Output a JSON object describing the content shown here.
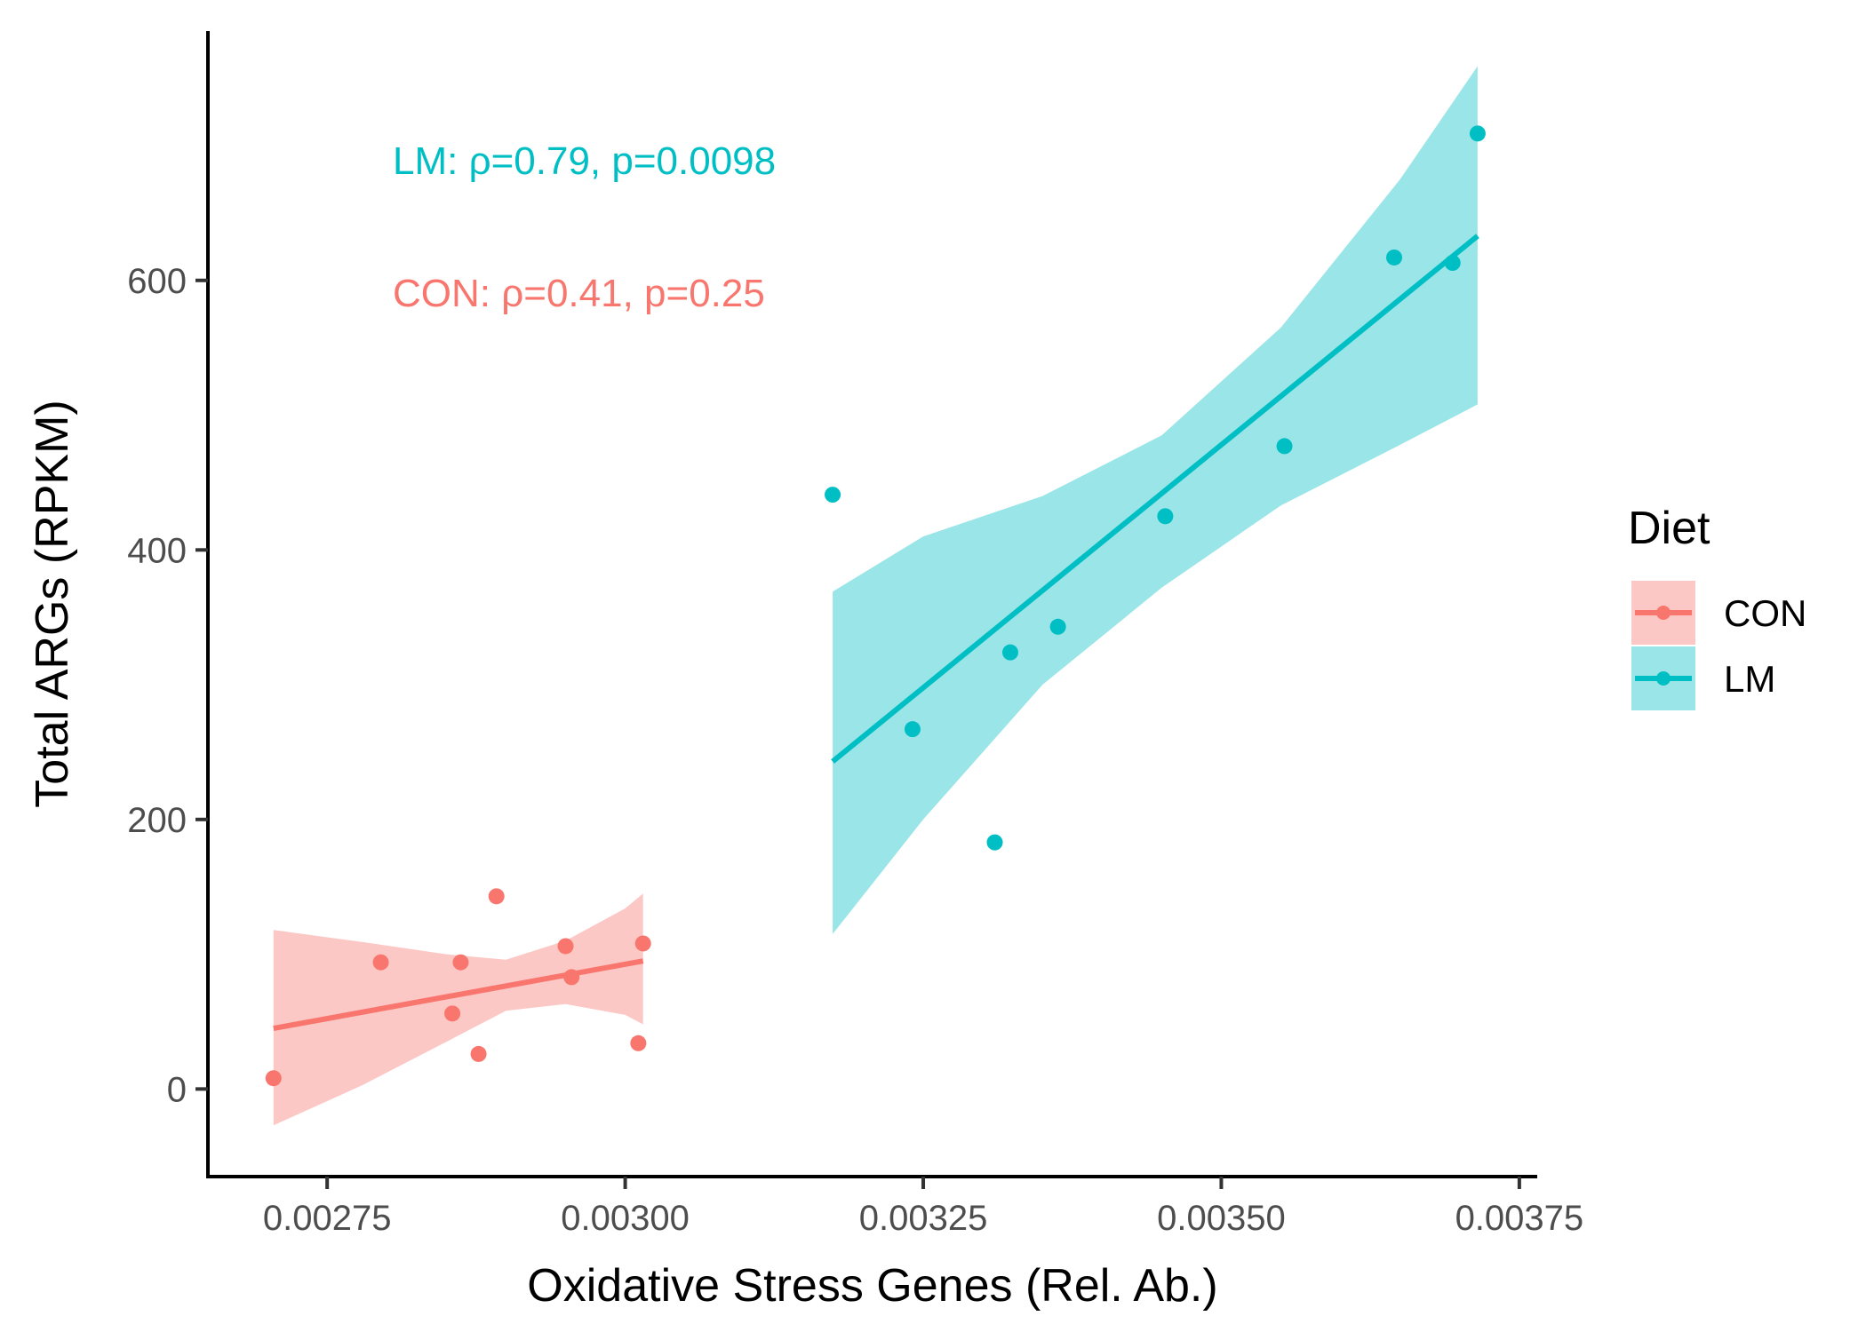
{
  "chart_data": {
    "type": "scatter",
    "xlabel": "Oxidative Stress Genes (Rel. Ab.)",
    "ylabel": "Total ARGs (RPKM)",
    "xlim": [
      0.00265,
      0.003765
    ],
    "ylim": [
      -65,
      785
    ],
    "x_ticks": [
      0.00275,
      0.003,
      0.00325,
      0.0035,
      0.00375
    ],
    "x_tick_labels": [
      "0.00275",
      "0.00300",
      "0.00325",
      "0.00350",
      "0.00375"
    ],
    "y_ticks": [
      0,
      200,
      400,
      600
    ],
    "y_tick_labels": [
      "0",
      "200",
      "400",
      "600"
    ],
    "grid": false,
    "legend": {
      "title": "Diet",
      "position": "right"
    },
    "series": [
      {
        "name": "CON",
        "color": "#F8766D",
        "points": [
          {
            "x": 0.002705,
            "y": 8
          },
          {
            "x": 0.002795,
            "y": 94
          },
          {
            "x": 0.002855,
            "y": 56
          },
          {
            "x": 0.002862,
            "y": 94
          },
          {
            "x": 0.002877,
            "y": 26
          },
          {
            "x": 0.002892,
            "y": 143
          },
          {
            "x": 0.00295,
            "y": 106
          },
          {
            "x": 0.002955,
            "y": 83
          },
          {
            "x": 0.003011,
            "y": 34
          },
          {
            "x": 0.003015,
            "y": 108
          }
        ],
        "fit": {
          "x": [
            0.002705,
            0.003015
          ],
          "y": [
            45,
            95
          ]
        },
        "band": {
          "x": [
            0.002705,
            0.00278,
            0.00285,
            0.0029,
            0.00295,
            0.003,
            0.003015
          ],
          "lower": [
            -27,
            3,
            35,
            58,
            63,
            55,
            48
          ],
          "upper": [
            118,
            109,
            100,
            96,
            110,
            134,
            145
          ]
        },
        "annotation": "CON: ρ=0.41, p=0.25"
      },
      {
        "name": "LM",
        "color": "#00BFC4",
        "points": [
          {
            "x": 0.003174,
            "y": 441
          },
          {
            "x": 0.003241,
            "y": 267
          },
          {
            "x": 0.00331,
            "y": 183
          },
          {
            "x": 0.003323,
            "y": 324
          },
          {
            "x": 0.003363,
            "y": 343
          },
          {
            "x": 0.003453,
            "y": 425
          },
          {
            "x": 0.003553,
            "y": 477
          },
          {
            "x": 0.003645,
            "y": 617
          },
          {
            "x": 0.003694,
            "y": 613
          },
          {
            "x": 0.003715,
            "y": 709
          }
        ],
        "fit": {
          "x": [
            0.003174,
            0.003715
          ],
          "y": [
            243,
            633
          ]
        },
        "band": {
          "x": [
            0.003174,
            0.00325,
            0.00335,
            0.00345,
            0.00355,
            0.00365,
            0.003715
          ],
          "lower": [
            115,
            200,
            300,
            372,
            433,
            478,
            508
          ],
          "upper": [
            369,
            410,
            440,
            485,
            565,
            675,
            759
          ]
        },
        "annotation": "LM: ρ=0.79, p=0.0098"
      }
    ]
  }
}
